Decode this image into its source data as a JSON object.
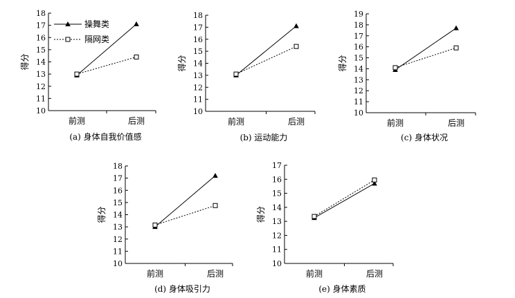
{
  "chart_data": [
    {
      "type": "line",
      "caption": "(a) 身体自我价值感",
      "ylabel": "得分",
      "categories": [
        "前测",
        "后测"
      ],
      "ylim": [
        10,
        18
      ],
      "yticks": [
        10,
        11,
        12,
        13,
        14,
        15,
        16,
        17,
        18
      ],
      "legend_position": "top-left",
      "series": [
        {
          "name": "操舞类",
          "values": [
            12.9,
            17.1
          ],
          "line": "solid",
          "marker": "filled-triangle"
        },
        {
          "name": "隔网类",
          "values": [
            13.0,
            14.4
          ],
          "line": "dotted",
          "marker": "open-square"
        }
      ]
    },
    {
      "type": "line",
      "caption": "(b) 运动能力",
      "ylabel": "得分",
      "categories": [
        "前测",
        "后测"
      ],
      "ylim": [
        10,
        18
      ],
      "yticks": [
        10,
        11,
        12,
        13,
        14,
        15,
        16,
        17,
        18
      ],
      "series": [
        {
          "name": "操舞类",
          "values": [
            13.0,
            17.1
          ],
          "line": "solid",
          "marker": "filled-triangle"
        },
        {
          "name": "隔网类",
          "values": [
            13.1,
            15.4
          ],
          "line": "dotted",
          "marker": "open-square"
        }
      ]
    },
    {
      "type": "line",
      "caption": "(c) 身体状况",
      "ylabel": "得分",
      "categories": [
        "前测",
        "后测"
      ],
      "ylim": [
        10,
        19
      ],
      "yticks": [
        10,
        11,
        12,
        13,
        14,
        15,
        16,
        17,
        18,
        19
      ],
      "series": [
        {
          "name": "操舞类",
          "values": [
            13.9,
            17.7
          ],
          "line": "solid",
          "marker": "filled-triangle"
        },
        {
          "name": "隔网类",
          "values": [
            14.1,
            15.9
          ],
          "line": "dotted",
          "marker": "open-square"
        }
      ]
    },
    {
      "type": "line",
      "caption": "(d) 身体吸引力",
      "ylabel": "得分",
      "categories": [
        "前测",
        "后测"
      ],
      "ylim": [
        10,
        18
      ],
      "yticks": [
        10,
        11,
        12,
        13,
        14,
        15,
        16,
        17,
        18
      ],
      "series": [
        {
          "name": "操舞类",
          "values": [
            13.0,
            17.2
          ],
          "line": "solid",
          "marker": "filled-triangle"
        },
        {
          "name": "隔网类",
          "values": [
            13.15,
            14.75
          ],
          "line": "dotted",
          "marker": "open-square"
        }
      ]
    },
    {
      "type": "line",
      "caption": "(e) 身体素质",
      "ylabel": "得分",
      "categories": [
        "前测",
        "后测"
      ],
      "ylim": [
        10,
        17
      ],
      "yticks": [
        10,
        11,
        12,
        13,
        14,
        15,
        16,
        17
      ],
      "series": [
        {
          "name": "操舞类",
          "values": [
            13.25,
            15.7
          ],
          "line": "solid",
          "marker": "filled-triangle"
        },
        {
          "name": "隔网类",
          "values": [
            13.35,
            15.95
          ],
          "line": "dotted",
          "marker": "open-square"
        }
      ]
    }
  ]
}
